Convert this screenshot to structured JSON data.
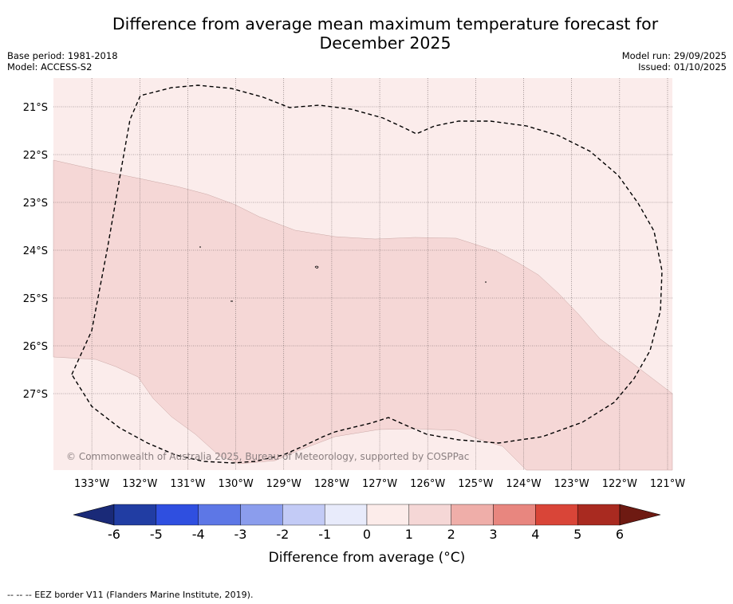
{
  "header": {
    "title_line1": "Difference from average mean maximum temperature forecast for",
    "title_line2": "December 2025",
    "base_period": "Base period: 1981-2018",
    "model": "Model: ACCESS-S2",
    "model_run": "Model run: 29/09/2025",
    "issued": "Issued: 01/10/2025"
  },
  "chart_data": {
    "type": "heatmap",
    "title": "Difference from average mean maximum temperature forecast for December 2025",
    "x_ticks": [
      "133°W",
      "132°W",
      "131°W",
      "130°W",
      "129°W",
      "128°W",
      "127°W",
      "126°W",
      "125°W",
      "124°W",
      "123°W",
      "122°W",
      "121°W"
    ],
    "y_ticks": [
      "21°S",
      "22°S",
      "23°S",
      "24°S",
      "25°S",
      "26°S",
      "27°S"
    ],
    "xlim": [
      -133.8,
      -120.9
    ],
    "ylim": [
      -28.6,
      -20.4
    ],
    "field_regions": [
      {
        "category": "0 to 1",
        "color": "#fbeceb",
        "description": "north and south portions of the map"
      },
      {
        "category": "1 to 2",
        "color": "#f5d7d6",
        "description": "central band running west to southeast"
      }
    ],
    "colorbar": {
      "label": "Difference from average (°C)",
      "ticks": [
        "-6",
        "-5",
        "-4",
        "-3",
        "-2",
        "-1",
        "0",
        "1",
        "2",
        "3",
        "4",
        "5",
        "6"
      ],
      "colors": [
        "#213da3",
        "#2f4fe0",
        "#5d77e6",
        "#8b9ded",
        "#c3cbf6",
        "#e8ebfb",
        "#fcecea",
        "#f5d7d6",
        "#efaea9",
        "#e8867f",
        "#d94538",
        "#a92a20"
      ],
      "under_color": "#1a2a78",
      "over_color": "#6e1a12"
    },
    "copyright": "© Commonwealth of Australia 2025, Bureau of Meteorology, supported by COSPPac"
  },
  "footer": {
    "eez_note": "--  --  -- EEZ border V11 (Flanders Marine Institute, 2019)."
  }
}
